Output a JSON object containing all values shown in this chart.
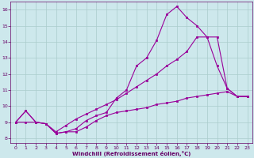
{
  "xlabel": "Windchill (Refroidissement éolien,°C)",
  "background_color": "#cde8ec",
  "grid_color": "#aacccc",
  "line_color": "#990099",
  "xlim_min": -0.5,
  "xlim_max": 23.5,
  "ylim_min": 7.7,
  "ylim_max": 16.5,
  "xticks": [
    0,
    1,
    2,
    3,
    4,
    5,
    6,
    7,
    8,
    9,
    10,
    11,
    12,
    13,
    14,
    15,
    16,
    17,
    18,
    19,
    20,
    21,
    22,
    23
  ],
  "yticks": [
    8,
    9,
    10,
    11,
    12,
    13,
    14,
    15,
    16
  ],
  "series1_x": [
    0,
    1,
    2,
    3,
    4,
    5,
    6,
    7,
    8,
    9,
    10,
    11,
    12,
    13,
    14,
    15,
    16,
    17,
    18,
    19,
    20,
    21,
    22,
    23
  ],
  "series1_y": [
    9.0,
    9.7,
    9.0,
    8.9,
    8.3,
    8.4,
    8.4,
    8.7,
    9.1,
    9.4,
    9.6,
    9.7,
    9.8,
    9.9,
    10.1,
    10.2,
    10.3,
    10.5,
    10.6,
    10.7,
    10.8,
    10.9,
    10.6,
    10.6
  ],
  "series2_x": [
    0,
    1,
    2,
    3,
    4,
    5,
    6,
    7,
    8,
    9,
    10,
    11,
    12,
    13,
    14,
    15,
    16,
    17,
    18,
    19,
    20,
    21,
    22,
    23
  ],
  "series2_y": [
    9.0,
    9.7,
    9.0,
    8.9,
    8.3,
    8.4,
    8.6,
    9.1,
    9.4,
    9.6,
    10.5,
    11.0,
    12.5,
    13.0,
    14.1,
    15.7,
    16.2,
    15.5,
    15.0,
    14.3,
    12.5,
    11.1,
    10.6,
    10.6
  ],
  "series3_x": [
    0,
    1,
    2,
    3,
    4,
    5,
    6,
    7,
    8,
    9,
    10,
    11,
    12,
    13,
    14,
    15,
    16,
    17,
    18,
    19,
    20,
    21,
    22,
    23
  ],
  "series3_y": [
    9.0,
    9.0,
    9.0,
    8.9,
    8.4,
    8.8,
    9.2,
    9.5,
    9.8,
    10.1,
    10.4,
    10.8,
    11.2,
    11.6,
    12.0,
    12.5,
    12.9,
    13.4,
    14.3,
    14.3,
    14.3,
    11.1,
    10.6,
    10.6
  ]
}
